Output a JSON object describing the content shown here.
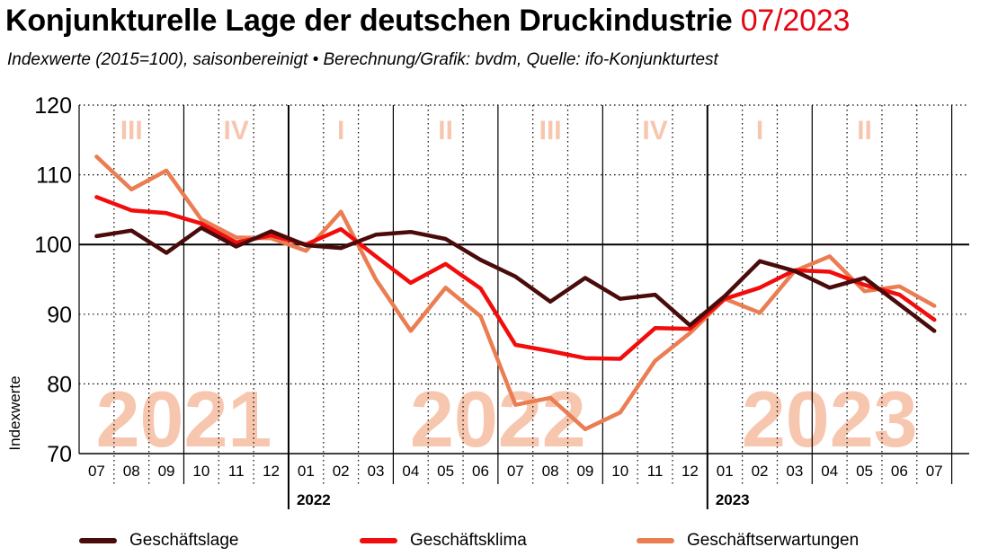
{
  "header": {
    "title": "Konjunkturelle Lage der deutschen Druckindustrie",
    "date": "07/2023",
    "subtitle": "Indexwerte (2015=100), saisonbereinigt • Berechnung/Grafik: bvdm, Quelle: ifo-Konjunkturtest"
  },
  "colors": {
    "title_accent": "#e30613",
    "watermark": "#f7c6ae"
  },
  "chart_data": {
    "type": "line",
    "ylabel": "Indexwerte",
    "ylim": [
      70,
      120
    ],
    "yticks": [
      70,
      80,
      90,
      100,
      110,
      120
    ],
    "reference_line": 100,
    "grid": true,
    "legend_position": "bottom",
    "x": [
      "07",
      "08",
      "09",
      "10",
      "11",
      "12",
      "01",
      "02",
      "03",
      "04",
      "05",
      "06",
      "07",
      "08",
      "09",
      "10",
      "11",
      "12",
      "01",
      "02",
      "03",
      "04",
      "05",
      "06",
      "07"
    ],
    "year_labels": [
      {
        "label": "2022",
        "index": 6
      },
      {
        "label": "2023",
        "index": 18
      }
    ],
    "watermark_years": [
      {
        "label": "2021",
        "start": 0,
        "end": 5
      },
      {
        "label": "2022",
        "start": 6,
        "end": 17
      },
      {
        "label": "2023",
        "start": 18,
        "end": 24
      }
    ],
    "quarters": [
      {
        "label": "III",
        "start": 0,
        "end": 2
      },
      {
        "label": "IV",
        "start": 3,
        "end": 5
      },
      {
        "label": "I",
        "start": 6,
        "end": 8
      },
      {
        "label": "II",
        "start": 9,
        "end": 11
      },
      {
        "label": "III",
        "start": 12,
        "end": 14
      },
      {
        "label": "IV",
        "start": 15,
        "end": 17
      },
      {
        "label": "I",
        "start": 18,
        "end": 20
      },
      {
        "label": "II",
        "start": 21,
        "end": 23
      }
    ],
    "series": [
      {
        "name": "Geschäftslage",
        "color": "#4a0b0b",
        "values": [
          101.2,
          102.0,
          98.8,
          102.4,
          99.7,
          101.9,
          99.9,
          99.5,
          101.4,
          101.8,
          100.8,
          97.8,
          95.4,
          91.8,
          95.2,
          92.2,
          92.8,
          88.4,
          92.6,
          97.6,
          96.2,
          93.8,
          95.2,
          91.4,
          87.6
        ]
      },
      {
        "name": "Geschäftsklima",
        "color": "#f20d0d",
        "values": [
          106.8,
          104.9,
          104.5,
          103.0,
          100.3,
          101.3,
          100.0,
          102.2,
          98.3,
          94.5,
          97.2,
          93.7,
          85.6,
          84.7,
          83.7,
          83.6,
          88.0,
          87.9,
          92.2,
          93.8,
          96.3,
          96.1,
          94.2,
          92.8,
          89.2
        ]
      },
      {
        "name": "Geschäftserwartungen",
        "color": "#ea7d52",
        "values": [
          112.6,
          107.9,
          110.6,
          103.6,
          101.0,
          100.9,
          99.1,
          104.7,
          95.0,
          87.6,
          93.8,
          89.7,
          77.0,
          78.0,
          73.5,
          75.9,
          83.3,
          87.3,
          92.2,
          90.2,
          96.2,
          98.3,
          93.3,
          94.0,
          91.2
        ]
      }
    ]
  }
}
